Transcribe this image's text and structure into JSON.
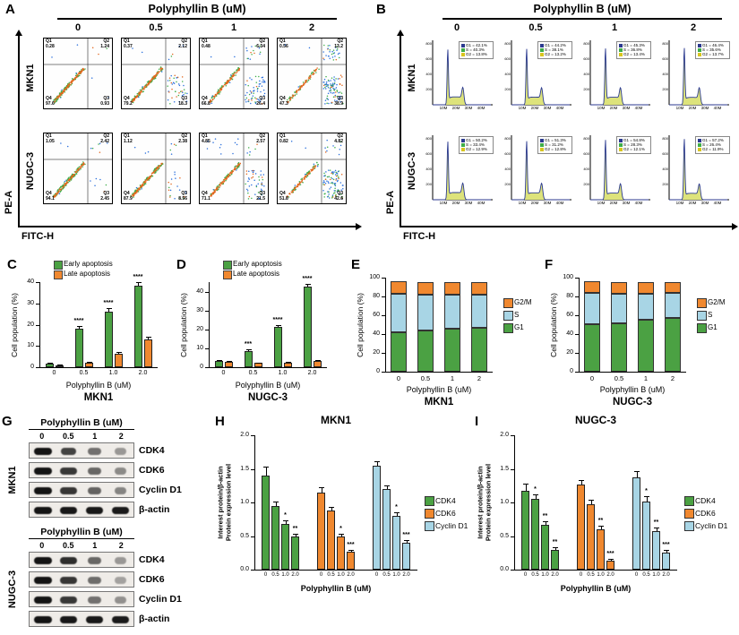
{
  "colors": {
    "green": "#4ba143",
    "orange": "#f0882f",
    "blue": "#a8d5e5",
    "navy": "#2b3a8f",
    "hist_fill": "#dde37b",
    "hist_g2": "#d8c51f",
    "axis": "#000000"
  },
  "panelA": {
    "label": "A",
    "title": "Polyphyllin B (uM)",
    "concentrations": [
      "0",
      "0.5",
      "1",
      "2"
    ],
    "x_axis_label": "FITC-H",
    "y_axis_label": "PE-A",
    "rows": [
      {
        "cell_line": "MKN1",
        "plots": [
          {
            "Q1": "0.28",
            "Q2": "1.24",
            "Q3": "0.93",
            "Q4": "97.6"
          },
          {
            "Q1": "0.37",
            "Q2": "2.12",
            "Q3": "18.3",
            "Q4": "79.2"
          },
          {
            "Q1": "0.48",
            "Q2": "6.34",
            "Q3": "26.4",
            "Q4": "66.8"
          },
          {
            "Q1": "0.56",
            "Q2": "13.2",
            "Q3": "38.9",
            "Q4": "47.3"
          }
        ]
      },
      {
        "cell_line": "NUGC-3",
        "plots": [
          {
            "Q1": "1.05",
            "Q2": "2.42",
            "Q3": "2.45",
            "Q4": "94.1"
          },
          {
            "Q1": "1.12",
            "Q2": "2.38",
            "Q3": "8.56",
            "Q4": "87.9"
          },
          {
            "Q1": "4.85",
            "Q2": "2.57",
            "Q3": "21.5",
            "Q4": "71.1"
          },
          {
            "Q1": "0.82",
            "Q2": "4.82",
            "Q3": "42.6",
            "Q4": "51.8"
          }
        ]
      }
    ]
  },
  "panelB": {
    "label": "B",
    "title": "Polyphyllin B (uM)",
    "concentrations": [
      "0",
      "0.5",
      "1",
      "2"
    ],
    "x_axis_label": "FITC-H",
    "y_axis_label": "PE-A",
    "x_ticks": [
      "10M",
      "20M",
      "30M",
      "40M"
    ],
    "y_ticks": [
      "200",
      "400",
      "600",
      "800"
    ],
    "legend_prefixes": [
      "G1",
      "S",
      "G2"
    ],
    "rows": [
      {
        "cell_line": "MKN1",
        "hists": [
          {
            "G1": 42.1,
            "S": 40.3,
            "G2": 13.8
          },
          {
            "G1": 44.2,
            "S": 38.1,
            "G2": 13.2
          },
          {
            "G1": 45.3,
            "S": 36.8,
            "G2": 13.4
          },
          {
            "G1": 46.4,
            "S": 35.6,
            "G2": 13.7
          }
        ]
      },
      {
        "cell_line": "NUGC-3",
        "hists": [
          {
            "G1": 50.2,
            "S": 33.4,
            "G2": 12.9
          },
          {
            "G1": 51.3,
            "S": 31.2,
            "G2": 12.8
          },
          {
            "G1": 54.8,
            "S": 28.3,
            "G2": 12.1
          },
          {
            "G1": 57.2,
            "S": 26.4,
            "G2": 11.9
          }
        ]
      }
    ]
  },
  "chart_data": [
    {
      "id": "C",
      "panel_label": "C",
      "type": "bar",
      "cell_line": "MKN1",
      "xlabel": "Polyphyllin B (uM)",
      "ylabel": "Cell population (%)",
      "categories": [
        "0",
        "0.5",
        "1.0",
        "2.0"
      ],
      "ylim": [
        0,
        40
      ],
      "yticks": [
        0,
        10,
        20,
        30,
        40
      ],
      "series": [
        {
          "name": "Early apoptosis",
          "color": "#4ba143",
          "values": [
            1.5,
            18.2,
            26.3,
            38.4
          ],
          "err": [
            0.4,
            1.1,
            1.4,
            1.7
          ],
          "sig": [
            "",
            "****",
            "****",
            "****"
          ]
        },
        {
          "name": "Late apoptosis",
          "color": "#f0882f",
          "values": [
            0.9,
            2.1,
            6.3,
            13.2
          ],
          "err": [
            0.3,
            0.4,
            0.7,
            1.0
          ],
          "sig": [
            "",
            "",
            "",
            ""
          ]
        }
      ]
    },
    {
      "id": "D",
      "panel_label": "D",
      "type": "bar",
      "cell_line": "NUGC-3",
      "xlabel": "Polyphyllin B (uM)",
      "ylabel": "Cell population (%)",
      "categories": [
        "0",
        "0.5",
        "1.0",
        "2.0"
      ],
      "ylim": [
        0,
        45
      ],
      "yticks": [
        0,
        10,
        20,
        30,
        40
      ],
      "series": [
        {
          "name": "Early apoptosis",
          "color": "#4ba143",
          "values": [
            3.1,
            8.6,
            21.3,
            42.5
          ],
          "err": [
            0.5,
            0.8,
            1.2,
            1.6
          ],
          "sig": [
            "",
            "***",
            "****",
            "****"
          ]
        },
        {
          "name": "Late apoptosis",
          "color": "#f0882f",
          "values": [
            3.0,
            2.3,
            2.6,
            3.2
          ],
          "err": [
            0.4,
            0.3,
            0.4,
            0.5
          ],
          "sig": [
            "",
            "",
            "",
            ""
          ]
        }
      ]
    },
    {
      "id": "E",
      "panel_label": "E",
      "type": "stacked-bar",
      "cell_line": "MKN1",
      "xlabel": "Polyphyllin B (uM)",
      "ylabel": "Cell population (%)",
      "categories": [
        "0",
        "0.5",
        "1",
        "2"
      ],
      "ylim": [
        0,
        100
      ],
      "yticks": [
        0,
        20,
        40,
        60,
        80,
        100
      ],
      "legend_order": [
        "G2/M",
        "S",
        "G1"
      ],
      "series": [
        {
          "name": "G1",
          "color": "#4ba143",
          "values": [
            42.1,
            44.2,
            45.3,
            46.4
          ]
        },
        {
          "name": "S",
          "color": "#a8d5e5",
          "values": [
            40.3,
            38.1,
            36.8,
            35.6
          ]
        },
        {
          "name": "G2/M",
          "color": "#f0882f",
          "values": [
            13.8,
            13.2,
            13.4,
            13.7
          ]
        }
      ]
    },
    {
      "id": "F",
      "panel_label": "F",
      "type": "stacked-bar",
      "cell_line": "NUGC-3",
      "xlabel": "Polyphyllin B (uM)",
      "ylabel": "Cell population (%)",
      "categories": [
        "0",
        "0.5",
        "1",
        "2"
      ],
      "ylim": [
        0,
        100
      ],
      "yticks": [
        0,
        20,
        40,
        60,
        80,
        100
      ],
      "legend_order": [
        "G2/M",
        "S",
        "G1"
      ],
      "series": [
        {
          "name": "G1",
          "color": "#4ba143",
          "values": [
            50.2,
            51.3,
            54.8,
            57.2
          ]
        },
        {
          "name": "S",
          "color": "#a8d5e5",
          "values": [
            33.4,
            31.2,
            28.3,
            26.4
          ]
        },
        {
          "name": "G2/M",
          "color": "#f0882f",
          "values": [
            12.9,
            12.8,
            12.1,
            11.9
          ]
        }
      ]
    },
    {
      "id": "H",
      "panel_label": "H",
      "type": "grouped-bar",
      "title": "MKN1",
      "ylabel_lines": [
        "Interest protein/β-actin",
        "Protein expression level"
      ],
      "xlabel": "Polyphyllin B (uM)",
      "categories": [
        "0",
        "0.5",
        "1.0",
        "2.0"
      ],
      "ylim": [
        0,
        2
      ],
      "yticks": [
        "0.0",
        "0.5",
        "1.0",
        "1.5",
        "2.0"
      ],
      "series": [
        {
          "name": "CDK4",
          "color": "#4ba143",
          "values": [
            1.4,
            0.95,
            0.68,
            0.5
          ],
          "err": [
            0.13,
            0.06,
            0.05,
            0.04
          ],
          "sig": [
            "",
            "",
            "*",
            "**"
          ]
        },
        {
          "name": "CDK6",
          "color": "#f0882f",
          "values": [
            1.15,
            0.88,
            0.5,
            0.27
          ],
          "err": [
            0.08,
            0.05,
            0.04,
            0.03
          ],
          "sig": [
            "",
            "",
            "*",
            "***"
          ]
        },
        {
          "name": "Cyclin D1",
          "color": "#a8d5e5",
          "values": [
            1.55,
            1.2,
            0.8,
            0.4
          ],
          "err": [
            0.07,
            0.06,
            0.05,
            0.04
          ],
          "sig": [
            "",
            "",
            "*",
            "***"
          ]
        }
      ]
    },
    {
      "id": "I",
      "panel_label": "I",
      "type": "grouped-bar",
      "title": "NUGC-3",
      "ylabel_lines": [
        "Interest protein/β-actin",
        "Protein expression level"
      ],
      "xlabel": "Polyphyllin B (uM)",
      "categories": [
        "0",
        "0.5",
        "1.0",
        "2.0"
      ],
      "ylim": [
        0,
        2
      ],
      "yticks": [
        "0.0",
        "0.5",
        "1.0",
        "1.5",
        "2.0"
      ],
      "series": [
        {
          "name": "CDK4",
          "color": "#4ba143",
          "values": [
            1.18,
            1.05,
            0.67,
            0.3
          ],
          "err": [
            0.1,
            0.07,
            0.05,
            0.04
          ],
          "sig": [
            "",
            "*",
            "**",
            "**"
          ]
        },
        {
          "name": "CDK6",
          "color": "#f0882f",
          "values": [
            1.27,
            0.98,
            0.6,
            0.13
          ],
          "err": [
            0.07,
            0.06,
            0.05,
            0.03
          ],
          "sig": [
            "",
            "",
            "**",
            "***"
          ]
        },
        {
          "name": "Cyclin D1",
          "color": "#a8d5e5",
          "values": [
            1.38,
            1.02,
            0.58,
            0.25
          ],
          "err": [
            0.09,
            0.08,
            0.05,
            0.04
          ],
          "sig": [
            "",
            "*",
            "**",
            "***"
          ]
        }
      ]
    }
  ],
  "panelG": {
    "label": "G",
    "blocks": [
      {
        "cell_line": "MKN1",
        "header": "Polyphyllin B (uM)",
        "lanes": [
          "0",
          "0.5",
          "1",
          "2"
        ],
        "proteins": [
          {
            "name": "CDK4",
            "intensity": [
              1,
              0.72,
              0.45,
              0.22
            ]
          },
          {
            "name": "CDK6",
            "intensity": [
              1,
              0.78,
              0.5,
              0.3
            ]
          },
          {
            "name": "Cyclin D1",
            "intensity": [
              1,
              0.8,
              0.52,
              0.33
            ]
          },
          {
            "name": "β-actin",
            "intensity": [
              1,
              0.98,
              0.97,
              0.96
            ]
          }
        ]
      },
      {
        "cell_line": "NUGC-3",
        "header": "Polyphyllin B (uM)",
        "lanes": [
          "0",
          "0.5",
          "1",
          "2"
        ],
        "proteins": [
          {
            "name": "CDK4",
            "intensity": [
              1,
              0.85,
              0.5,
              0.22
            ]
          },
          {
            "name": "CDK6",
            "intensity": [
              1,
              0.8,
              0.48,
              0.15
            ]
          },
          {
            "name": "Cyclin D1",
            "intensity": [
              1,
              0.78,
              0.45,
              0.25
            ]
          },
          {
            "name": "β-actin",
            "intensity": [
              1,
              0.97,
              0.98,
              0.96
            ]
          }
        ]
      }
    ]
  }
}
